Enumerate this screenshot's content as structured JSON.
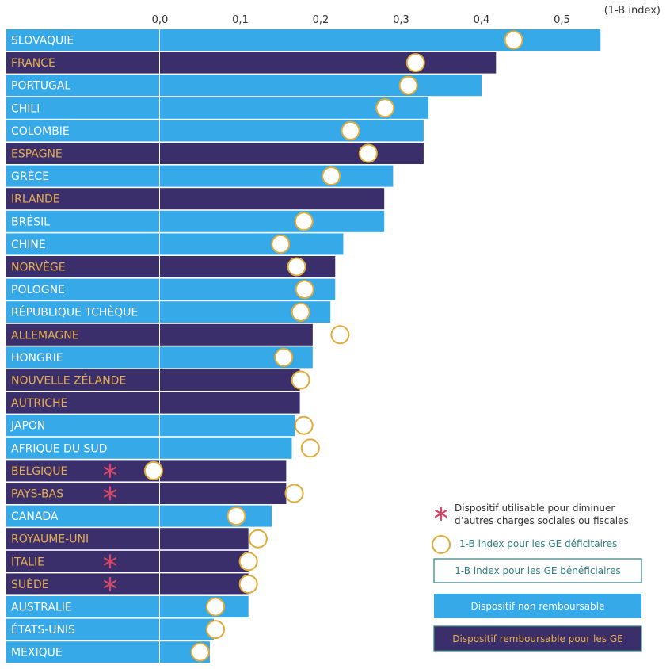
{
  "chart_data": {
    "type": "bar",
    "orientation": "horizontal",
    "unit_label": "(1-B index)",
    "x_ticks": [
      "0,0",
      "0,1",
      "0,2",
      "0,3",
      "0,4",
      "0,5"
    ],
    "xlim": [
      0,
      0.55
    ],
    "categories": [
      "SLOVAQUIE",
      "FRANCE",
      "PORTUGAL",
      "CHILI",
      "COLOMBIE",
      "ESPAGNE",
      "GRÈCE",
      "IRLANDE",
      "BRÉSIL",
      "CHINE",
      "NORVÈGE",
      "POLOGNE",
      "RÉPUBLIQUE TCHÈQUE",
      "ALLEMAGNE",
      "HONGRIE",
      "NOUVELLE ZÉLANDE",
      "AUTRICHE",
      "JAPON",
      "AFRIQUE DU SUD",
      "BELGIQUE",
      "PAYS-BAS",
      "CANADA",
      "ROYAUME-UNI",
      "ITALIE",
      "SUÈDE",
      "AUSTRALIE",
      "ÉTATS-UNIS",
      "MEXIQUE"
    ],
    "series": [
      {
        "name": "1-B index pour les GE bénéficiaires",
        "values": [
          0.548,
          0.418,
          0.4,
          0.334,
          0.328,
          0.328,
          0.29,
          0.279,
          0.279,
          0.228,
          0.218,
          0.218,
          0.212,
          0.19,
          0.19,
          0.174,
          0.174,
          0.168,
          0.164,
          0.157,
          0.157,
          0.139,
          0.11,
          0.11,
          0.11,
          0.11,
          0.067,
          0.062
        ]
      },
      {
        "name": "1-B index pour les GE déficitaires",
        "values": [
          0.44,
          0.318,
          0.309,
          0.28,
          0.237,
          0.259,
          0.213,
          null,
          0.179,
          0.15,
          0.17,
          0.18,
          0.175,
          0.224,
          0.154,
          0.175,
          null,
          0.179,
          0.187,
          -0.008,
          0.167,
          0.095,
          0.122,
          0.11,
          0.11,
          0.069,
          0.069,
          0.05
        ]
      }
    ],
    "refundable": [
      false,
      true,
      false,
      false,
      false,
      true,
      false,
      true,
      false,
      false,
      true,
      false,
      false,
      true,
      false,
      true,
      true,
      false,
      false,
      true,
      true,
      false,
      true,
      true,
      true,
      false,
      false,
      false
    ],
    "star": [
      false,
      false,
      false,
      false,
      false,
      false,
      false,
      false,
      false,
      false,
      false,
      false,
      false,
      false,
      false,
      false,
      false,
      false,
      false,
      true,
      true,
      false,
      false,
      true,
      true,
      false,
      false,
      false
    ],
    "colors": {
      "non_refundable": "#36a9e8",
      "refundable": "#3a2f6b",
      "label_non_refundable": "#ffffff",
      "label_refundable": "#e8ad4a",
      "circle_stroke": "#e0ab38",
      "star": "#d24a6a",
      "legend_teal": "#2e7f7f"
    },
    "legend": [
      {
        "key": "star",
        "text": [
          "Dispositif utilisable pour diminuer",
          "d’autres charges sociales ou fiscales"
        ]
      },
      {
        "key": "circle",
        "text": [
          "1-B index pour les GE déficitaires"
        ]
      },
      {
        "key": "outline",
        "text": [
          "1-B index pour les GE bénéficiaires"
        ]
      },
      {
        "key": "non_refundable",
        "text": [
          "Dispositif non remboursable"
        ]
      },
      {
        "key": "refundable",
        "text": [
          "Dispositif remboursable pour les GE"
        ]
      }
    ]
  }
}
